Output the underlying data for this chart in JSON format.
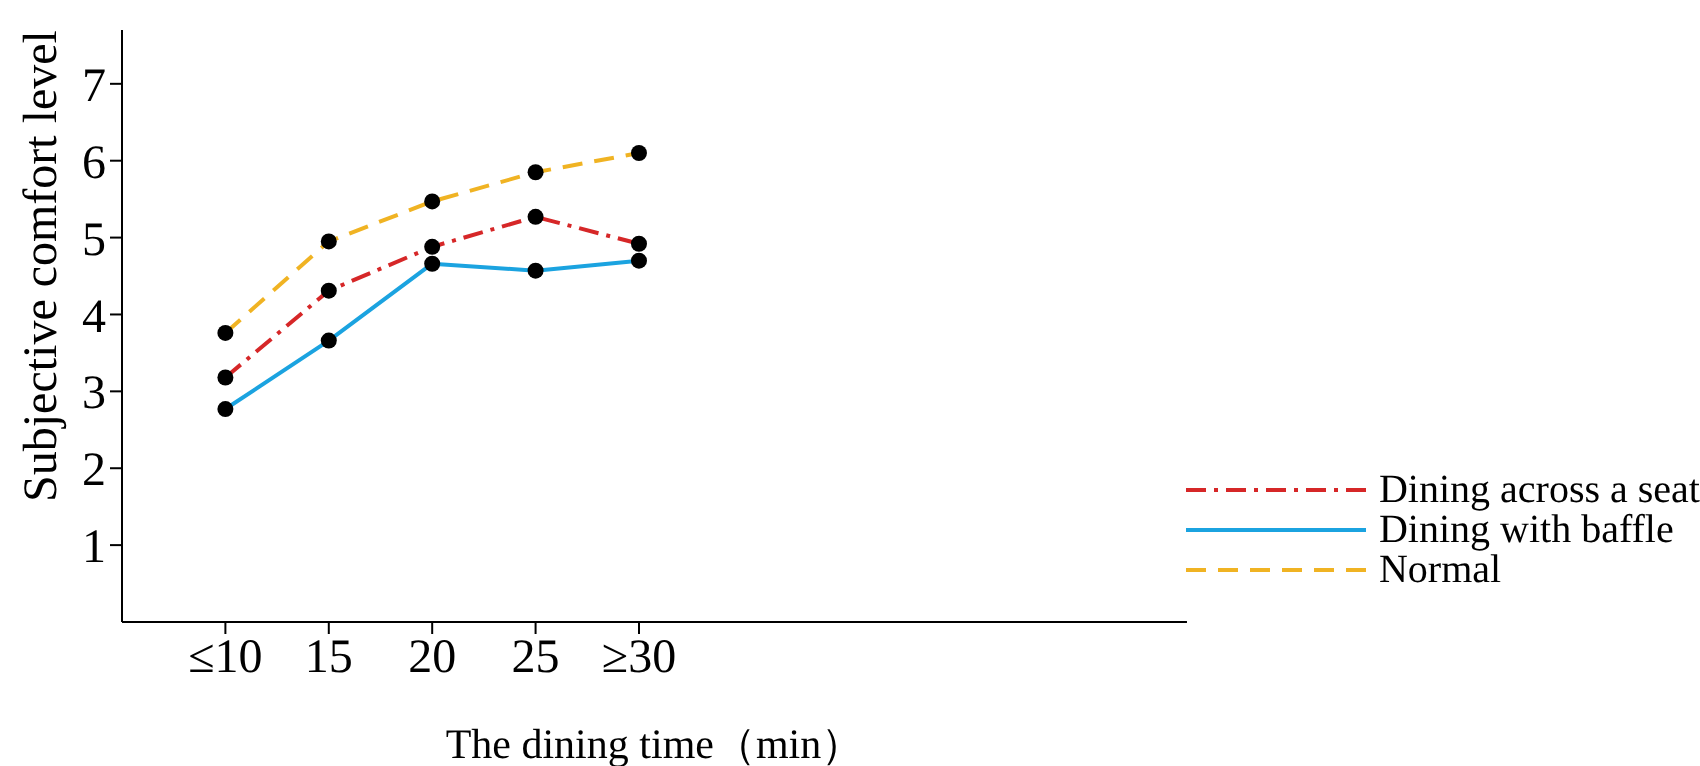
{
  "chart_data": {
    "type": "line",
    "xlabel": "The dining time（min）",
    "ylabel": "Subjective comfort level",
    "categories": [
      "≤10",
      "15",
      "20",
      "25",
      "≥30"
    ],
    "series": [
      {
        "name": "Dining across a seat",
        "color": "#d62728",
        "line_style": "dashdot",
        "values": [
          3.18,
          4.31,
          4.88,
          5.27,
          4.92
        ]
      },
      {
        "name": "Dining with baffle",
        "color": "#1ba3e0",
        "line_style": "solid",
        "values": [
          2.77,
          3.66,
          4.66,
          4.57,
          4.7
        ]
      },
      {
        "name": "Normal",
        "color": "#f0b323",
        "line_style": "dashed",
        "values": [
          3.76,
          4.95,
          5.47,
          5.85,
          6.1
        ]
      }
    ],
    "ylim": [
      0,
      7.7
    ],
    "yticks": [
      1,
      2,
      3,
      4,
      5,
      6,
      7
    ],
    "grid": false,
    "legend": "bottom right",
    "marker": "circle"
  }
}
